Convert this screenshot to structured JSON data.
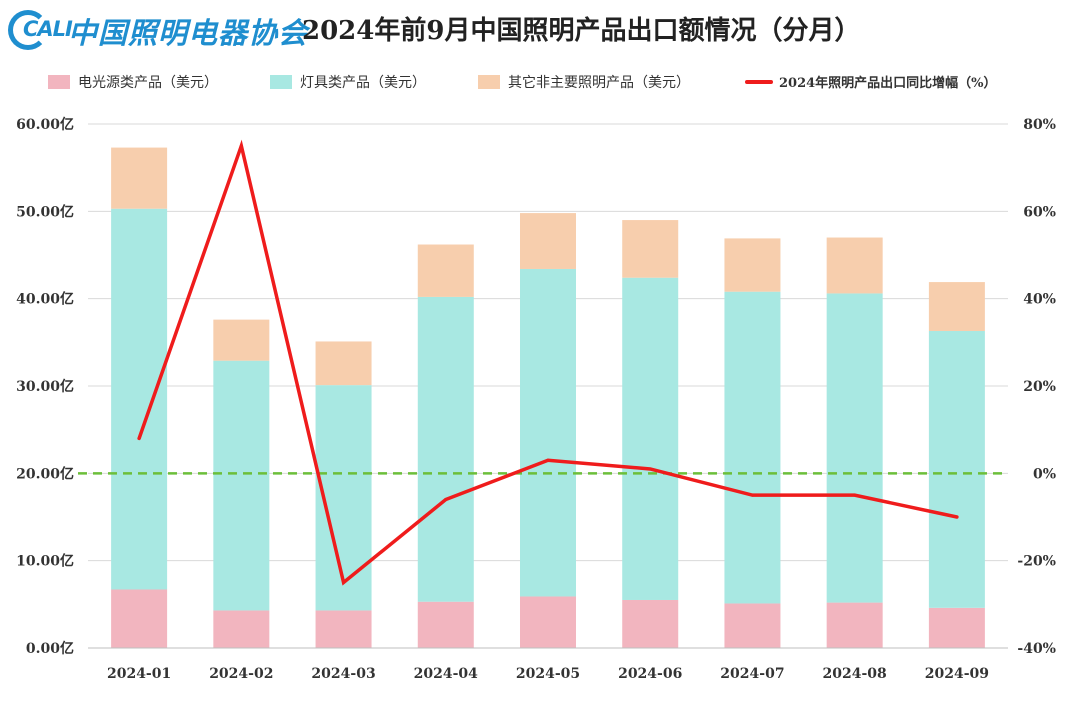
{
  "logo": {
    "abbr": "CALI",
    "name": "中国照明电器协会"
  },
  "header": {
    "title": "2024年前9月中国照明产品出口额情况（分月）"
  },
  "colors": {
    "light_source": "#f2b5bf",
    "fixtures": "#a8e8e2",
    "other": "#f7cead",
    "growth_line": "#ef1c1c",
    "zero_line": "#6cbf3a",
    "gridline": "#d9d9d9"
  },
  "chart_data": {
    "type": "bar",
    "stacked": true,
    "categories": [
      "2024-01",
      "2024-02",
      "2024-03",
      "2024-04",
      "2024-05",
      "2024-06",
      "2024-07",
      "2024-08",
      "2024-09"
    ],
    "series": [
      {
        "name": "电光源类产品（美元）",
        "type": "bar",
        "axis": "left",
        "values": [
          6.7,
          4.3,
          4.3,
          5.3,
          5.9,
          5.5,
          5.1,
          5.2,
          4.6
        ]
      },
      {
        "name": "灯具类产品（美元）",
        "type": "bar",
        "axis": "left",
        "values": [
          43.6,
          28.6,
          25.8,
          34.9,
          37.5,
          36.9,
          35.7,
          35.4,
          31.7
        ]
      },
      {
        "name": "其它非主要照明产品（美元）",
        "type": "bar",
        "axis": "left",
        "values": [
          7.0,
          4.7,
          5.0,
          6.0,
          6.4,
          6.6,
          6.1,
          6.4,
          5.6
        ]
      },
      {
        "name": "2024年照明产品出口同比增幅（%）",
        "type": "line",
        "axis": "right",
        "values": [
          8,
          75,
          -25,
          -6,
          3,
          1,
          -5,
          -5,
          -10
        ]
      }
    ],
    "y_left": {
      "min": 0,
      "max": 60,
      "step": 10,
      "ticks": [
        "0.00亿",
        "10.00亿",
        "20.00亿",
        "30.00亿",
        "40.00亿",
        "50.00亿",
        "60.00亿"
      ]
    },
    "y_right": {
      "min": -40,
      "max": 80,
      "step": 20,
      "ticks": [
        "-40%",
        "-20%",
        "0%",
        "20%",
        "40%",
        "60%",
        "80%"
      ]
    },
    "reference_line": {
      "axis": "right",
      "value": 0,
      "style": "dashed"
    },
    "grid": true,
    "legend_position": "top"
  }
}
